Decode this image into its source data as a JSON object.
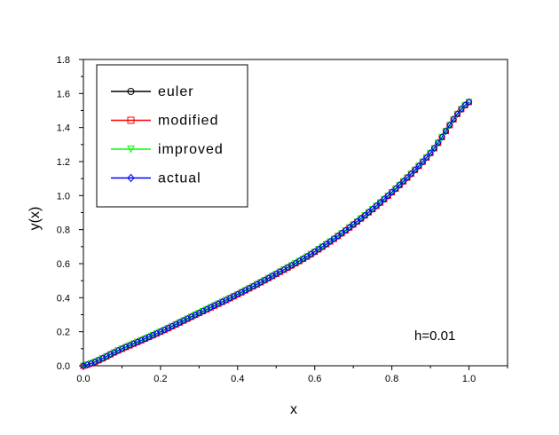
{
  "chart_data": {
    "type": "line",
    "title": "",
    "xlabel": "x",
    "ylabel": "y(x)",
    "xlim": [
      0.0,
      1.1
    ],
    "ylim": [
      0.0,
      1.8
    ],
    "x_ticks": [
      "0.0",
      "0.2",
      "0.4",
      "0.6",
      "0.8",
      "1.0"
    ],
    "y_ticks": [
      "0.0",
      "0.2",
      "0.4",
      "0.6",
      "0.8",
      "1.0",
      "1.2",
      "1.4",
      "1.6",
      "1.8"
    ],
    "annotation": "h=0.01",
    "legend_position": "top-left",
    "grid": false,
    "x": [
      0.0,
      0.1,
      0.2,
      0.3,
      0.4,
      0.5,
      0.6,
      0.7,
      0.8,
      0.9,
      1.0
    ],
    "series": [
      {
        "name": "euler",
        "color": "#000000",
        "marker": "circle",
        "values": [
          0.0,
          0.1,
          0.2,
          0.31,
          0.42,
          0.54,
          0.67,
          0.83,
          1.02,
          1.25,
          1.55
        ]
      },
      {
        "name": "modified",
        "color": "#ff0000",
        "marker": "square",
        "values": [
          0.0,
          0.1,
          0.2,
          0.31,
          0.42,
          0.54,
          0.67,
          0.83,
          1.02,
          1.25,
          1.55
        ]
      },
      {
        "name": "improved",
        "color": "#00ff00",
        "marker": "triangle-down",
        "values": [
          0.0,
          0.1,
          0.2,
          0.31,
          0.42,
          0.54,
          0.67,
          0.83,
          1.02,
          1.25,
          1.55
        ]
      },
      {
        "name": "actual",
        "color": "#0000ff",
        "marker": "diamond",
        "values": [
          0.0,
          0.1,
          0.2,
          0.31,
          0.42,
          0.54,
          0.67,
          0.83,
          1.02,
          1.25,
          1.55
        ]
      }
    ]
  }
}
